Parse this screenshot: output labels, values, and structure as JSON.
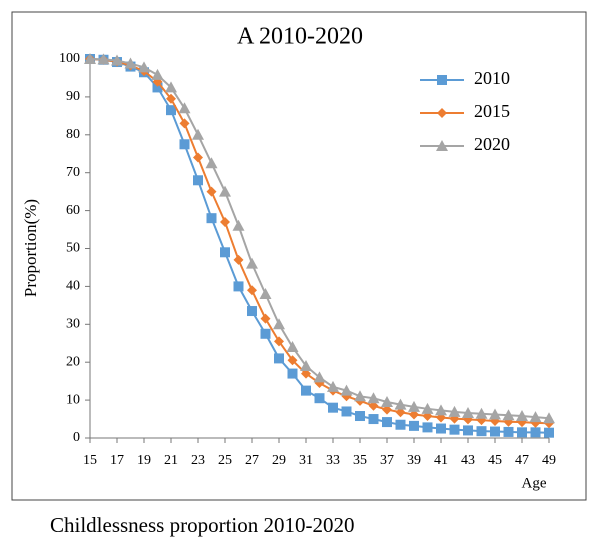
{
  "chart_data": {
    "type": "line",
    "title": "A 2010-2020",
    "ylabel": "Proportion(%)",
    "xlabel": "Age",
    "caption": "Childlessness proportion 2010-2020",
    "x": [
      15,
      16,
      17,
      18,
      19,
      20,
      21,
      22,
      23,
      24,
      25,
      26,
      27,
      28,
      29,
      30,
      31,
      32,
      33,
      34,
      35,
      36,
      37,
      38,
      39,
      40,
      41,
      42,
      43,
      44,
      45,
      46,
      47,
      48,
      49
    ],
    "xlim": [
      15,
      49
    ],
    "xticks": [
      15,
      17,
      19,
      21,
      23,
      25,
      27,
      29,
      31,
      33,
      35,
      37,
      39,
      41,
      43,
      45,
      47,
      49
    ],
    "ylim": [
      0,
      100
    ],
    "yticks": [
      0,
      10,
      20,
      30,
      40,
      50,
      60,
      70,
      80,
      90,
      100
    ],
    "grid": false,
    "legend": "top-right",
    "series": [
      {
        "name": "2010",
        "color": "#5b9bd5",
        "marker": "square",
        "values": [
          100,
          99.8,
          99.2,
          98,
          96.5,
          92.5,
          86.5,
          77.5,
          68,
          58,
          49,
          40,
          33.5,
          27.5,
          21,
          17,
          12.5,
          10.5,
          8,
          7,
          5.8,
          5,
          4.2,
          3.5,
          3.2,
          2.8,
          2.5,
          2.2,
          2,
          1.8,
          1.7,
          1.6,
          1.5,
          1.5,
          1.4
        ]
      },
      {
        "name": "2015",
        "color": "#ed7d31",
        "marker": "diamond",
        "values": [
          100,
          99.8,
          99.3,
          98.3,
          96.8,
          94,
          89.5,
          83,
          74,
          65,
          57,
          47,
          39,
          31.5,
          25.5,
          20.5,
          17,
          14.5,
          12.5,
          11,
          9.8,
          8.5,
          7.5,
          6.8,
          6.2,
          5.8,
          5.4,
          5.1,
          4.9,
          4.7,
          4.5,
          4.3,
          4.2,
          4,
          3.9
        ]
      },
      {
        "name": "2020",
        "color": "#a5a5a5",
        "marker": "triangle",
        "values": [
          100,
          99.9,
          99.6,
          98.8,
          97.8,
          95.8,
          92.5,
          87,
          80,
          72.5,
          65,
          56,
          46,
          38,
          30,
          24,
          19,
          16,
          13.5,
          12.5,
          11,
          10.5,
          9.5,
          8.8,
          8.2,
          7.7,
          7.3,
          6.9,
          6.6,
          6.4,
          6.2,
          6,
          5.8,
          5.5,
          5.2
        ]
      }
    ]
  }
}
